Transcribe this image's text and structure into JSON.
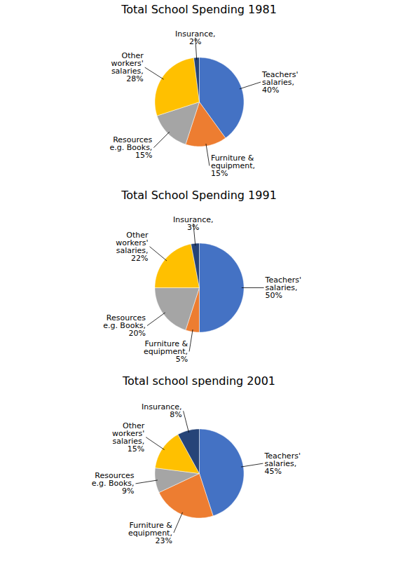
{
  "chart_data": [
    {
      "type": "pie",
      "title": "Total School Spending 1981",
      "categories": [
        "Teachers'\nsalaries,",
        "Furniture &\nequipment,",
        "Resources\ne.g. Books,",
        "Other\nworkers'\nsalaries,",
        "Insurance,"
      ],
      "values": [
        40,
        15,
        15,
        28,
        2
      ],
      "value_labels": [
        "40%",
        "15%",
        "15%",
        "28%",
        "2%"
      ],
      "colors": [
        "#4472C4",
        "#ED7D31",
        "#A5A5A5",
        "#FFC000",
        "#264478"
      ],
      "data_labels": true
    },
    {
      "type": "pie",
      "title": "Total School Spending 1991",
      "categories": [
        "Teachers'\nsalaries,",
        "Furniture &\nequipment,",
        "Resources\ne.g. Books,",
        "Other\nworkers'\nsalaries,",
        "Insurance,"
      ],
      "values": [
        50,
        5,
        20,
        22,
        3
      ],
      "value_labels": [
        "50%",
        "5%",
        "20%",
        "22%",
        "3%"
      ],
      "colors": [
        "#4472C4",
        "#ED7D31",
        "#A5A5A5",
        "#FFC000",
        "#264478"
      ],
      "data_labels": true
    },
    {
      "type": "pie",
      "title": "Total school spending 2001",
      "categories": [
        "Teachers'\nsalaries,",
        "Furniture &\nequipment,",
        "Resources\ne.g. Books,",
        "Other\nworkers'\nsalaries,",
        "Insurance,"
      ],
      "values": [
        45,
        23,
        9,
        15,
        8
      ],
      "value_labels": [
        "45%",
        "23%",
        "9%",
        "15%",
        "8%"
      ],
      "colors": [
        "#4472C4",
        "#ED7D31",
        "#A5A5A5",
        "#FFC000",
        "#264478"
      ],
      "data_labels": true
    }
  ]
}
